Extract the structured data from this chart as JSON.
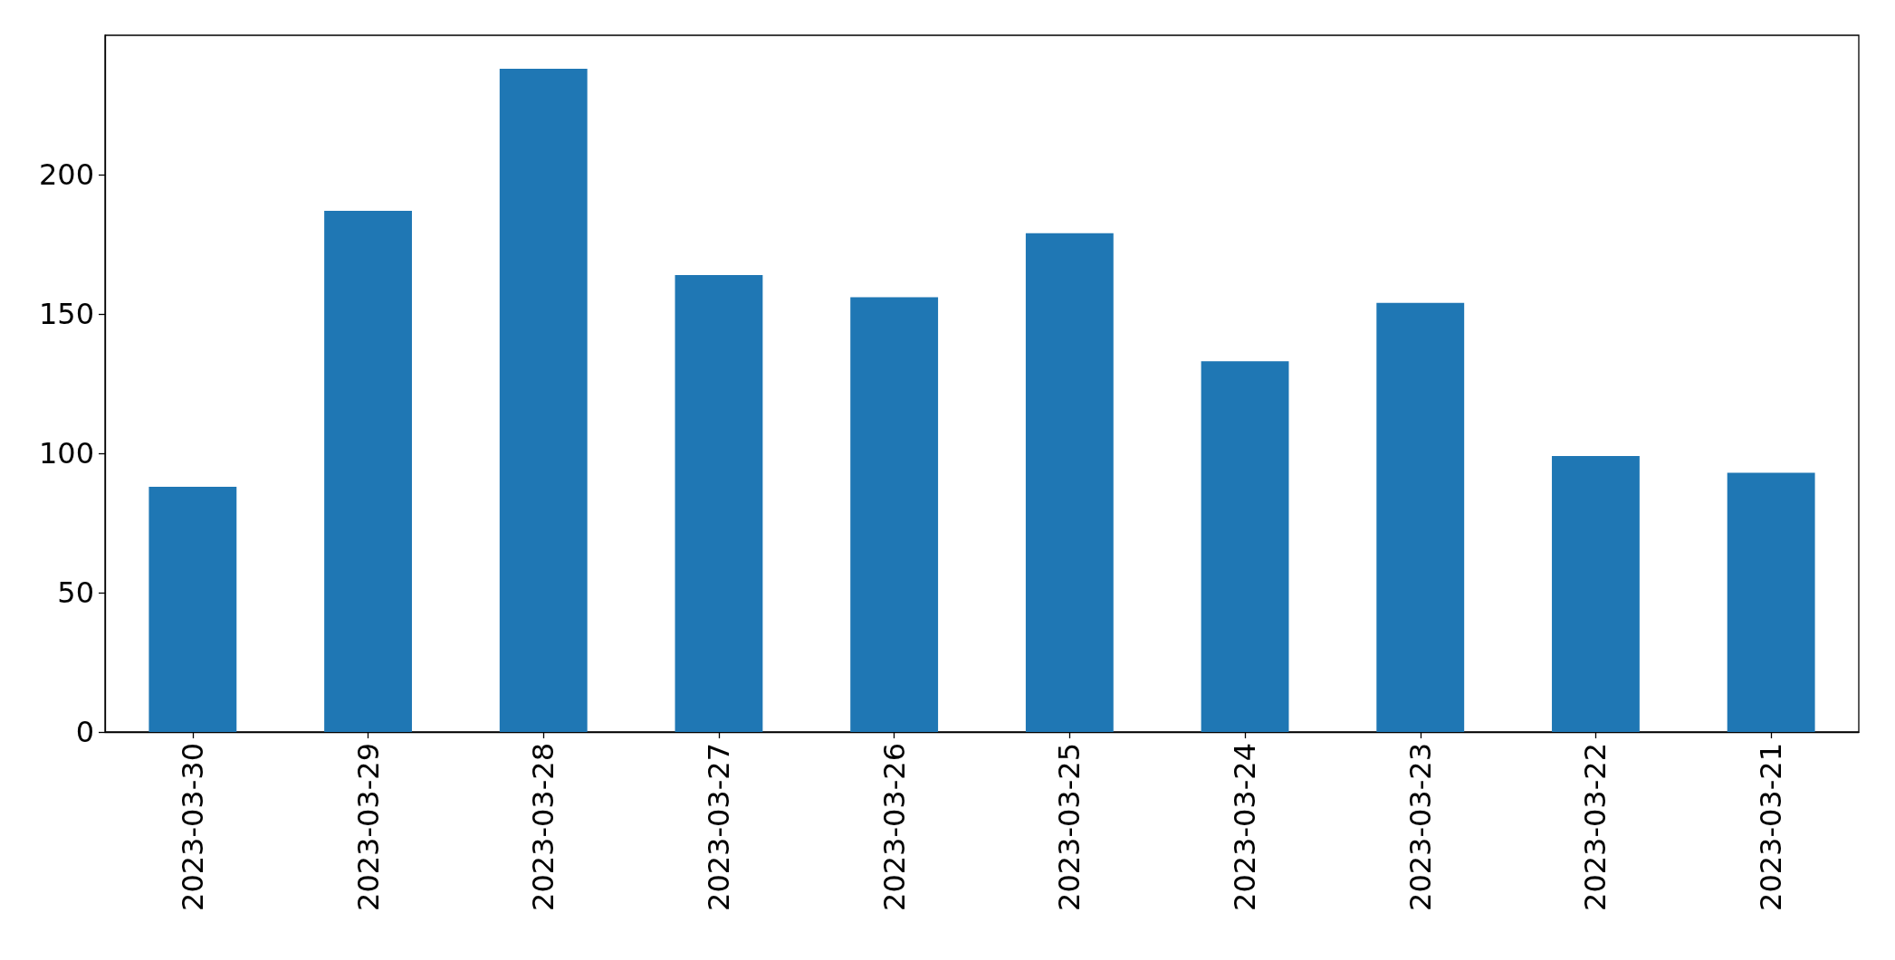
{
  "chart_data": {
    "type": "bar",
    "categories": [
      "2023-03-30",
      "2023-03-29",
      "2023-03-28",
      "2023-03-27",
      "2023-03-26",
      "2023-03-25",
      "2023-03-24",
      "2023-03-23",
      "2023-03-22",
      "2023-03-21"
    ],
    "values": [
      88,
      187,
      238,
      164,
      156,
      179,
      133,
      154,
      99,
      93
    ],
    "color": "#1f77b4",
    "ylim": [
      0,
      250
    ],
    "yticks": [
      0,
      50,
      100,
      150,
      200
    ]
  }
}
